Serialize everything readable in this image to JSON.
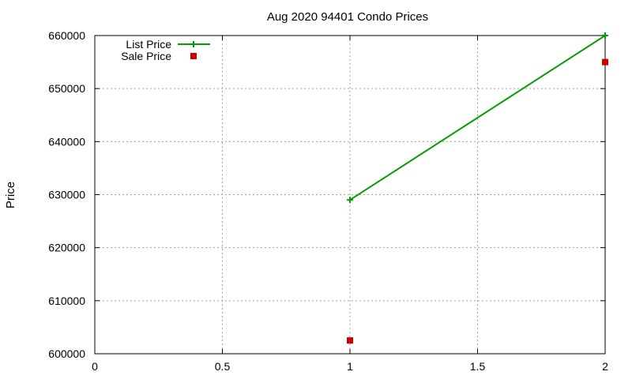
{
  "chart_data": {
    "type": "line",
    "title": "Aug 2020 94401 Condo Prices",
    "xlabel": "",
    "ylabel": "Price",
    "xlim": [
      0,
      2
    ],
    "ylim": [
      600000,
      660000
    ],
    "x_ticks": [
      0,
      0.5,
      1,
      1.5,
      2
    ],
    "y_ticks": [
      600000,
      610000,
      620000,
      630000,
      640000,
      650000,
      660000
    ],
    "grid": true,
    "legend_position": "top-left",
    "series": [
      {
        "name": "List Price",
        "style": "line-with-plus-markers",
        "color": "#00a000",
        "x": [
          1,
          2
        ],
        "y": [
          629000,
          660000
        ]
      },
      {
        "name": "Sale Price",
        "style": "square-markers",
        "color": "#cc0000",
        "x": [
          1,
          2
        ],
        "y": [
          602500,
          655000
        ]
      }
    ]
  }
}
